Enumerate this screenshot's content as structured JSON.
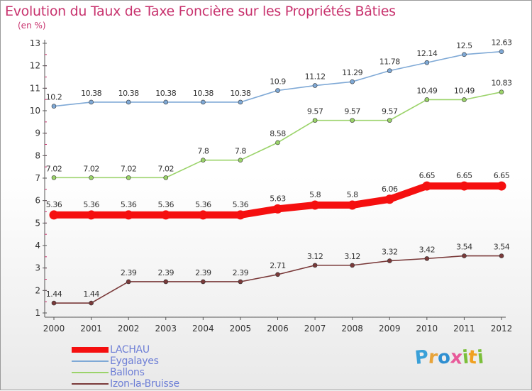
{
  "title": "Evolution du Taux de Taxe Foncière sur les Propriétés Bâties",
  "unit_label": "(en %)",
  "logo": {
    "letters": [
      "P",
      "r",
      "o",
      "x",
      "i",
      "t",
      "i"
    ],
    "colors": [
      "#3aa0d8",
      "#e8a43a",
      "#2f8fd1",
      "#e85a9a",
      "#7bbf3a",
      "#f0a020",
      "#7bbf3a"
    ]
  },
  "chart_data": {
    "type": "line",
    "x": [
      "2000",
      "2001",
      "2002",
      "2003",
      "2004",
      "2005",
      "2006",
      "2007",
      "2008",
      "2009",
      "2010",
      "2011",
      "2012"
    ],
    "yticks": [
      "1",
      "2",
      "3",
      "4",
      "5",
      "6",
      "7",
      "8",
      "9",
      "10",
      "11",
      "12",
      "13"
    ],
    "ylim": [
      1,
      13
    ],
    "grid": false,
    "legend_position": "bottom-left",
    "series": [
      {
        "name": "Eygalayes",
        "color": "#7fa9d6",
        "values": [
          10.2,
          10.38,
          10.38,
          10.38,
          10.38,
          10.38,
          10.9,
          11.12,
          11.29,
          11.78,
          12.14,
          12.5,
          12.63
        ],
        "labels": [
          "10.2",
          "10.38",
          "10.38",
          "10.38",
          "10.38",
          "10.38",
          "10.9",
          "11.12",
          "11.29",
          "11.78",
          "12.14",
          "12.5",
          "12.63"
        ]
      },
      {
        "name": "Ballons",
        "color": "#9bd36a",
        "values": [
          7.02,
          7.02,
          7.02,
          7.02,
          7.8,
          7.8,
          8.58,
          9.57,
          9.57,
          9.57,
          10.49,
          10.49,
          10.83
        ],
        "labels": [
          "7.02",
          "7.02",
          "7.02",
          "7.02",
          "7.8",
          "7.8",
          "8.58",
          "9.57",
          "9.57",
          "9.57",
          "10.49",
          "10.49",
          "10.83"
        ]
      },
      {
        "name": "LACHAU",
        "color": "#f50f0f",
        "values": [
          5.36,
          5.36,
          5.36,
          5.36,
          5.36,
          5.36,
          5.63,
          5.8,
          5.8,
          6.06,
          6.65,
          6.65,
          6.65
        ],
        "labels": [
          "5.36",
          "5.36",
          "5.36",
          "5.36",
          "5.36",
          "5.36",
          "5.63",
          "5.8",
          "5.8",
          "6.06",
          "6.65",
          "6.65",
          "6.65"
        ]
      },
      {
        "name": "Izon-la-Bruisse",
        "color": "#7a3a3a",
        "values": [
          1.44,
          1.44,
          2.39,
          2.39,
          2.39,
          2.39,
          2.71,
          3.12,
          3.12,
          3.32,
          3.42,
          3.54,
          3.54
        ],
        "labels": [
          "1.44",
          "1.44",
          "2.39",
          "2.39",
          "2.39",
          "2.39",
          "2.71",
          "3.12",
          "3.12",
          "3.32",
          "3.42",
          "3.54",
          "3.54"
        ]
      }
    ],
    "legend": [
      {
        "name": "LACHAU",
        "color": "#f50f0f"
      },
      {
        "name": "Eygalayes",
        "color": "#7fa9d6"
      },
      {
        "name": "Ballons",
        "color": "#9bd36a"
      },
      {
        "name": "Izon-la-Bruisse",
        "color": "#7a3a3a"
      }
    ]
  }
}
